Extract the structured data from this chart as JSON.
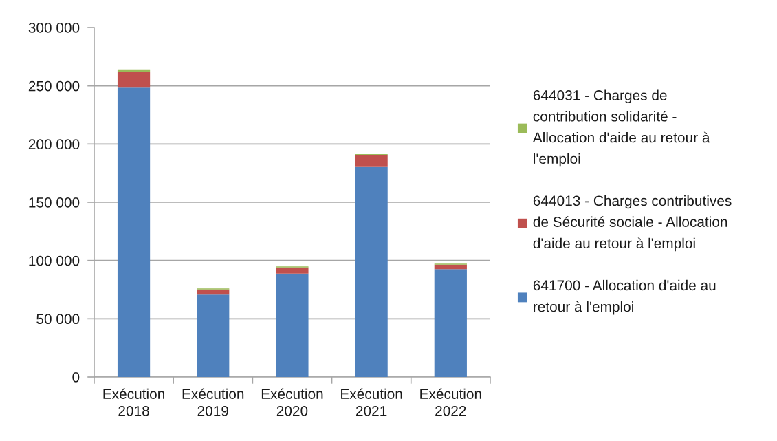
{
  "chart_data": {
    "type": "bar",
    "stacked": true,
    "categories": [
      "Exécution\n2018",
      "Exécution\n2019",
      "Exécution\n2020",
      "Exécution\n2021",
      "Exécution\n2022"
    ],
    "series": [
      {
        "name": "641700 - Allocation d'aide au\nretour à l'emploi",
        "color": "#4f81bd",
        "values": [
          248400,
          70700,
          88800,
          180300,
          92500
        ]
      },
      {
        "name": "644013 - Charges contributives\nde Sécurité sociale - Allocation\nd'aide au retour à l'emploi",
        "color": "#c0504d",
        "values": [
          13800,
          4500,
          5300,
          10300,
          3900
        ]
      },
      {
        "name": "644031 - Charges de\ncontribution solidarité -\nAllocation d'aide au retour à\nl'emploi",
        "color": "#9bbb59",
        "values": [
          1400,
          800,
          800,
          700,
          900
        ]
      }
    ],
    "ylim": [
      0,
      300000
    ],
    "yticks": [
      0,
      {
        "value": 50000,
        "label": "50 000"
      },
      {
        "value": 100000,
        "label": "100 000"
      },
      {
        "value": 150000,
        "label": "150 000"
      },
      {
        "value": 200000,
        "label": "200 000"
      },
      {
        "value": 250000,
        "label": "250 000"
      },
      {
        "value": 300000,
        "label": "300 000"
      }
    ],
    "grid": "y",
    "legend": "right"
  }
}
